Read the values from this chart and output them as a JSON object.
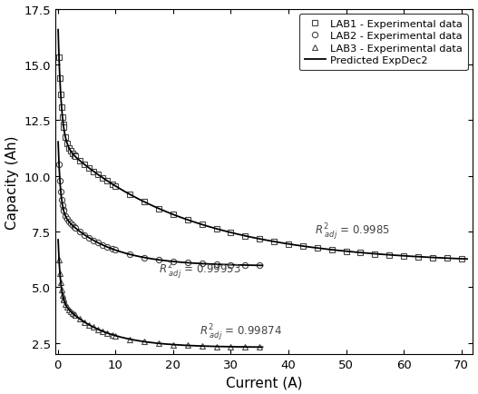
{
  "xlabel": "Current (A)",
  "ylabel": "Capacity (Ah)",
  "xlim": [
    -0.5,
    72
  ],
  "ylim": [
    2.0,
    17.5
  ],
  "yticks": [
    2.5,
    5.0,
    7.5,
    10.0,
    12.5,
    15.0,
    17.5
  ],
  "xticks": [
    0,
    10,
    20,
    30,
    40,
    50,
    60,
    70
  ],
  "legend_labels": [
    "LAB1 - Experimental data",
    "LAB2 - Experimental data",
    "LAB3 - Experimental data",
    "Predicted ExpDec2"
  ],
  "marker_color": "#444444",
  "line_color": "#000000",
  "background": "#ffffff",
  "r2_lab1_x": 44.5,
  "r2_lab1_y": 7.4,
  "r2_lab2_x": 17.5,
  "r2_lab2_y": 5.65,
  "r2_lab3_x": 24.5,
  "r2_lab3_y": 2.85,
  "r2_lab1_val": "= 0.9985",
  "r2_lab2_val": "= 0.99953",
  "r2_lab3_val": "= 0.99874"
}
